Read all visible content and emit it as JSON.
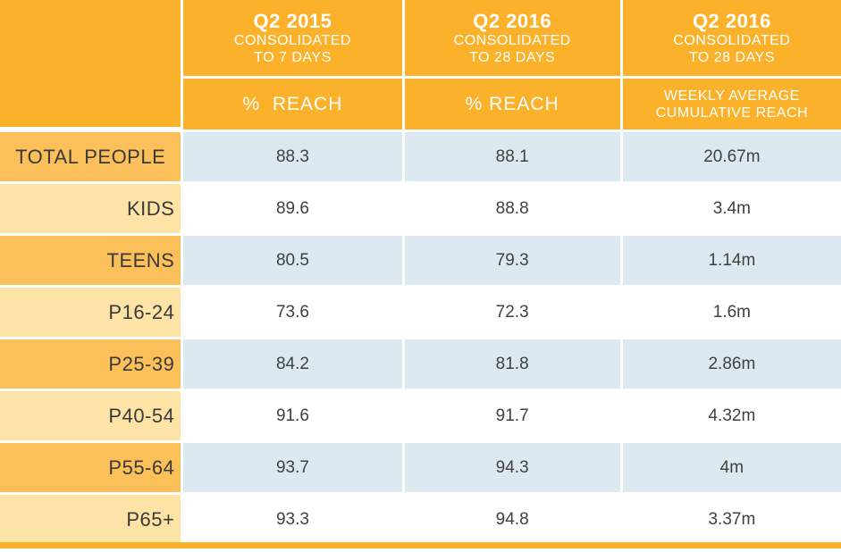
{
  "chart_data": {
    "type": "table",
    "columns": [
      {
        "period": "Q2 2015",
        "note_line1": "CONSOLIDATED",
        "note_line2": "TO 7 DAYS",
        "metric": "%  REACH"
      },
      {
        "period": "Q2 2016",
        "note_line1": "CONSOLIDATED",
        "note_line2": "TO 28 DAYS",
        "metric": "% REACH"
      },
      {
        "period": "Q2 2016",
        "note_line1": "CONSOLIDATED",
        "note_line2": "TO 28 DAYS",
        "metric_line1": "WEEKLY AVERAGE",
        "metric_line2": "CUMULATIVE REACH"
      }
    ],
    "rows": [
      {
        "label": "TOTAL PEOPLE",
        "values": [
          "88.3",
          "88.1",
          "20.67m"
        ]
      },
      {
        "label": "KIDS",
        "values": [
          "89.6",
          "88.8",
          "3.4m"
        ]
      },
      {
        "label": "TEENS",
        "values": [
          "80.5",
          "79.3",
          "1.14m"
        ]
      },
      {
        "label": "P16-24",
        "values": [
          "73.6",
          "72.3",
          "1.6m"
        ]
      },
      {
        "label": "P25-39",
        "values": [
          "84.2",
          "81.8",
          "2.86m"
        ]
      },
      {
        "label": "P40-54",
        "values": [
          "91.6",
          "91.7",
          "4.32m"
        ]
      },
      {
        "label": "P55-64",
        "values": [
          "93.7",
          "94.3",
          "4m"
        ]
      },
      {
        "label": "P65+",
        "values": [
          "93.3",
          "94.8",
          "3.37m"
        ]
      }
    ],
    "colors": {
      "header": "#fbb12a",
      "label_dark": "#fcc05a",
      "label_light": "#fde3a6",
      "row_shaded": "#dde9f1",
      "row_plain": "#ffffff"
    }
  }
}
